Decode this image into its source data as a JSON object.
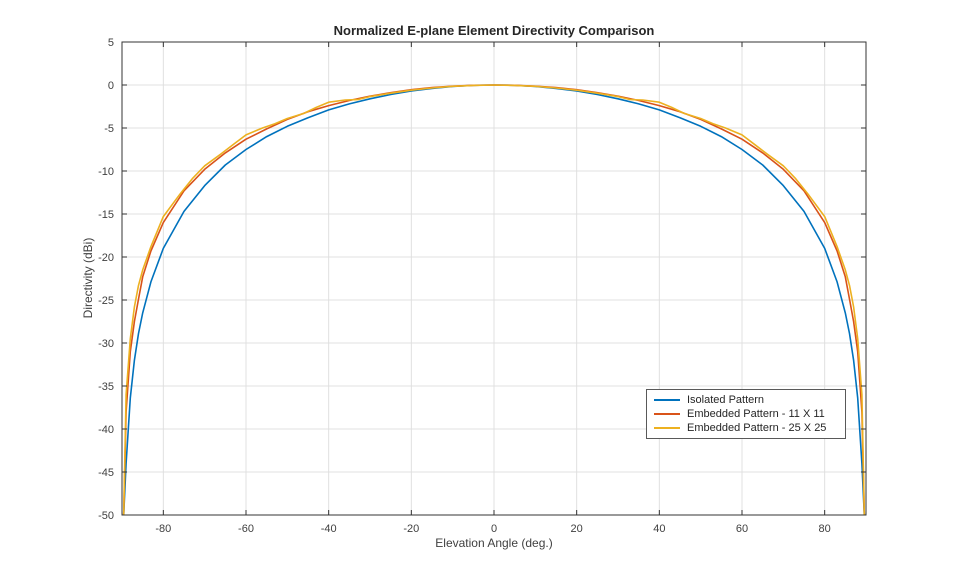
{
  "figure": {
    "background": "#ffffff",
    "axes_color": "#333333",
    "grid_color": "#e0e0e0",
    "tick_label_color": "#404040"
  },
  "chart_data": {
    "type": "line",
    "title": "Normalized E-plane Element Directivity Comparison",
    "xlabel": "Elevation Angle (deg.)",
    "ylabel": "Directivity (dBi)",
    "xlim": [
      -90,
      90
    ],
    "ylim": [
      -50,
      5
    ],
    "xticks": [
      -80,
      -60,
      -40,
      -20,
      0,
      20,
      40,
      60,
      80
    ],
    "yticks": [
      5,
      0,
      -5,
      -10,
      -15,
      -20,
      -25,
      -30,
      -35,
      -40,
      -45,
      -50
    ],
    "grid": true,
    "legend_position": "lower-right-inside",
    "series": [
      {
        "name": "Isolated Pattern",
        "color": "#0072BD",
        "x": [
          -89.6,
          -89,
          -88,
          -87,
          -86,
          -85,
          -83,
          -80,
          -75,
          -70,
          -65,
          -60,
          -55,
          -50,
          -45,
          -40,
          -35,
          -30,
          -25,
          -20,
          -15,
          -10,
          -5,
          0,
          5,
          10,
          15,
          20,
          25,
          30,
          35,
          40,
          45,
          50,
          55,
          60,
          65,
          70,
          75,
          80,
          83,
          85,
          86,
          87,
          88,
          89,
          89.6
        ],
        "y": [
          -50,
          -44,
          -36.4,
          -32,
          -28.9,
          -26.5,
          -22.9,
          -19,
          -14.7,
          -11.7,
          -9.3,
          -7.5,
          -6,
          -4.8,
          -3.8,
          -2.9,
          -2.2,
          -1.6,
          -1.1,
          -0.7,
          -0.4,
          -0.17,
          -0.04,
          0,
          -0.04,
          -0.17,
          -0.4,
          -0.7,
          -1.1,
          -1.6,
          -2.2,
          -2.9,
          -3.8,
          -4.8,
          -6,
          -7.5,
          -9.3,
          -11.7,
          -14.7,
          -19,
          -22.9,
          -26.5,
          -28.9,
          -32,
          -36.4,
          -44,
          -50
        ]
      },
      {
        "name": "Embedded Pattern - 11 X 11",
        "color": "#D95319",
        "x": [
          -89.6,
          -89,
          -88,
          -87,
          -86,
          -85,
          -83,
          -80,
          -75,
          -70,
          -65,
          -60,
          -55,
          -50,
          -45,
          -40,
          -35,
          -30,
          -25,
          -20,
          -15,
          -10,
          -5,
          0,
          5,
          10,
          15,
          20,
          25,
          30,
          35,
          40,
          45,
          50,
          55,
          60,
          65,
          70,
          75,
          80,
          83,
          85,
          86,
          87,
          88,
          89,
          89.6
        ],
        "y": [
          -50,
          -38,
          -31,
          -27.5,
          -24.9,
          -22.3,
          -19.3,
          -16,
          -12.3,
          -9.8,
          -7.9,
          -6.3,
          -5.1,
          -4,
          -3.1,
          -2.4,
          -1.8,
          -1.3,
          -0.9,
          -0.55,
          -0.3,
          -0.14,
          -0.03,
          0,
          -0.03,
          -0.14,
          -0.3,
          -0.55,
          -0.9,
          -1.3,
          -1.8,
          -2.4,
          -3.1,
          -4,
          -5.1,
          -6.3,
          -7.9,
          -9.8,
          -12.3,
          -16,
          -19.3,
          -22.3,
          -24.9,
          -27.5,
          -31,
          -38,
          -50
        ]
      },
      {
        "name": "Embedded Pattern - 25 X 25",
        "color": "#EDB120",
        "x": [
          -89.6,
          -89,
          -88,
          -87,
          -86,
          -85,
          -83,
          -80,
          -76,
          -73,
          -70,
          -66,
          -63,
          -60,
          -56,
          -53,
          -50,
          -46,
          -43,
          -40,
          -36,
          -33,
          -30,
          -25,
          -20,
          -15,
          -10,
          -5,
          0,
          5,
          10,
          15,
          20,
          25,
          30,
          33,
          36,
          40,
          43,
          46,
          50,
          53,
          56,
          60,
          63,
          66,
          70,
          73,
          76,
          80,
          83,
          85,
          86,
          87,
          88,
          89,
          89.6
        ],
        "y": [
          -50,
          -36,
          -29.5,
          -25.8,
          -23.3,
          -21.5,
          -18.8,
          -15.3,
          -12.7,
          -10.9,
          -9.4,
          -8,
          -6.9,
          -5.8,
          -5,
          -4.5,
          -3.9,
          -3.3,
          -2.6,
          -2,
          -1.75,
          -1.7,
          -1.35,
          -0.95,
          -0.6,
          -0.35,
          -0.15,
          -0.05,
          0,
          -0.05,
          -0.15,
          -0.35,
          -0.6,
          -0.95,
          -1.35,
          -1.7,
          -1.75,
          -2,
          -2.6,
          -3.3,
          -3.9,
          -4.5,
          -5,
          -5.8,
          -6.9,
          -8,
          -9.4,
          -10.9,
          -12.7,
          -15.3,
          -18.8,
          -21.5,
          -23.3,
          -25.8,
          -29.5,
          -36,
          -50
        ]
      }
    ]
  }
}
